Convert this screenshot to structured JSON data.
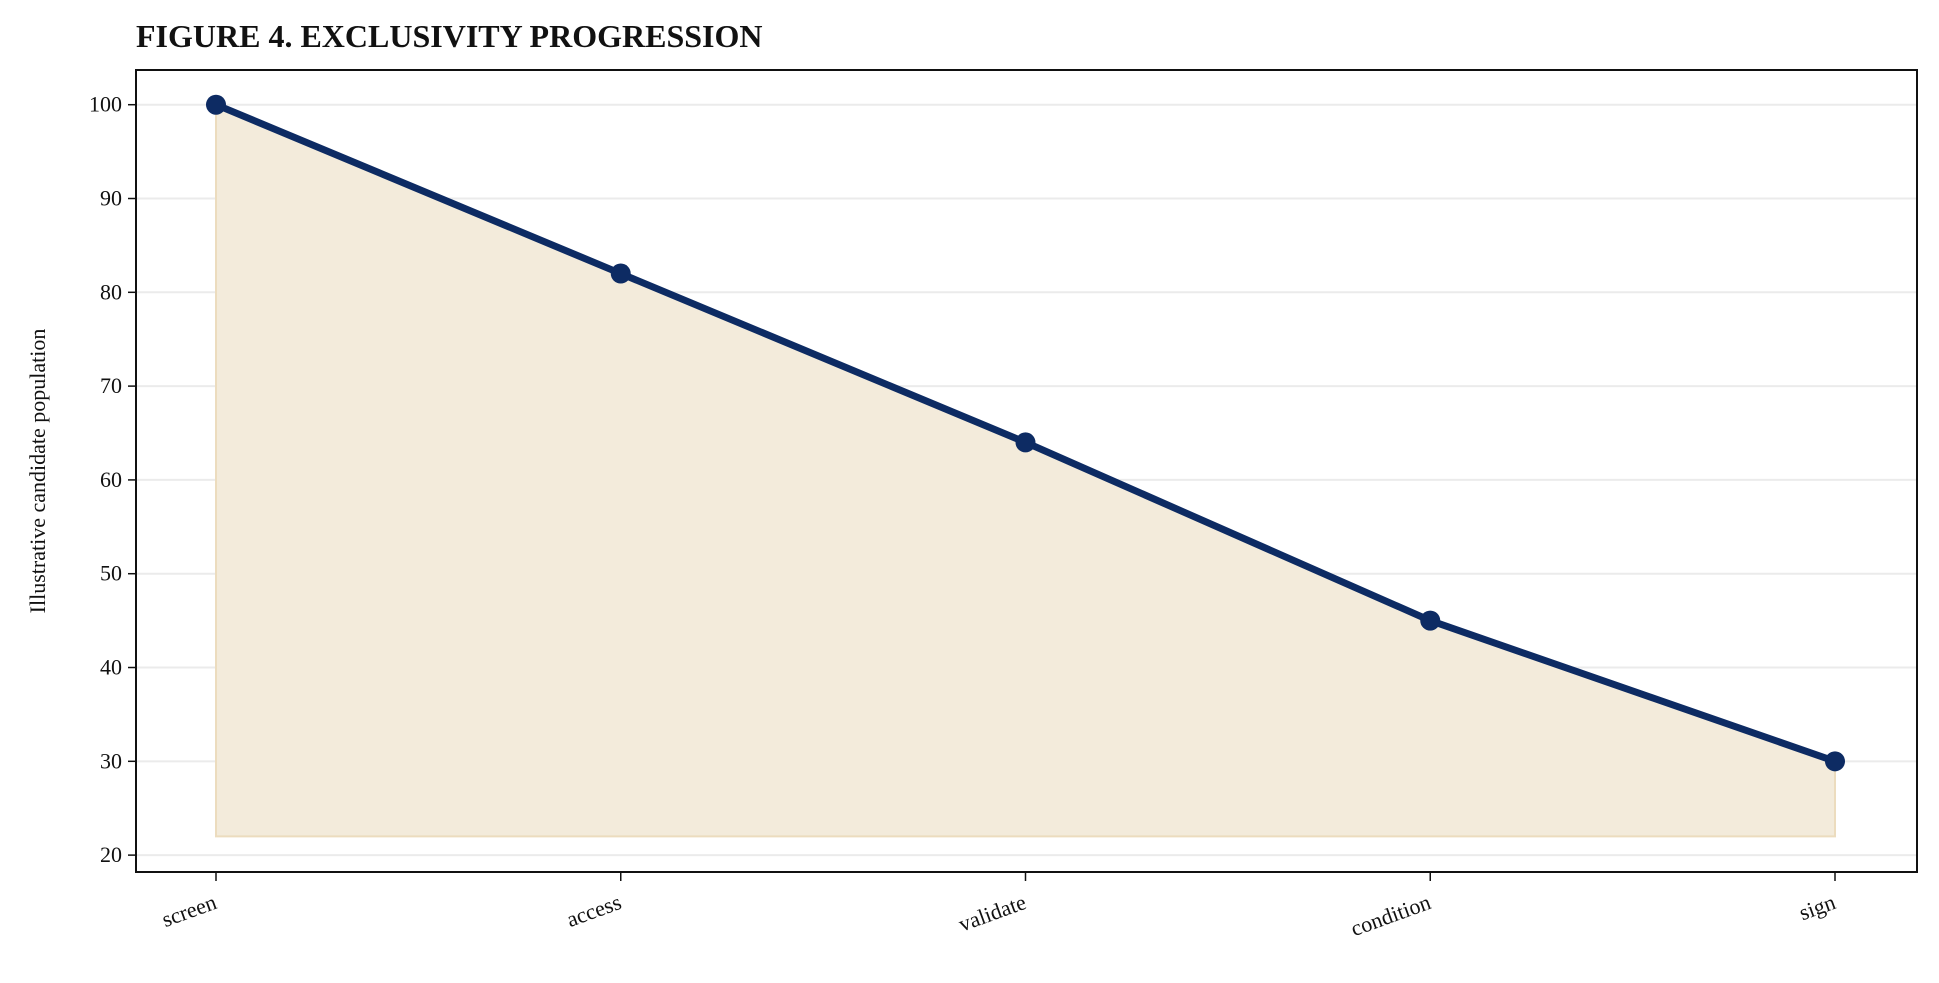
{
  "chart_data": {
    "type": "line",
    "title": "FIGURE 4. EXCLUSIVITY PROGRESSION",
    "y_label": "Illustrative candidate population",
    "categories": [
      "screen",
      "access",
      "validate",
      "condition",
      "sign"
    ],
    "series": [
      {
        "name": "Illustrative candidate population",
        "color": "#0d2b63",
        "values": [
          100,
          82,
          64,
          45,
          30
        ]
      }
    ],
    "fill": {
      "color": "#f3ebdb",
      "edge": "#ecdcbe",
      "baseline": 22
    },
    "ylim": [
      18.2,
      103.7
    ],
    "yticks": [
      20,
      30,
      40,
      50,
      60,
      70,
      80,
      90,
      100
    ],
    "grid": true
  }
}
